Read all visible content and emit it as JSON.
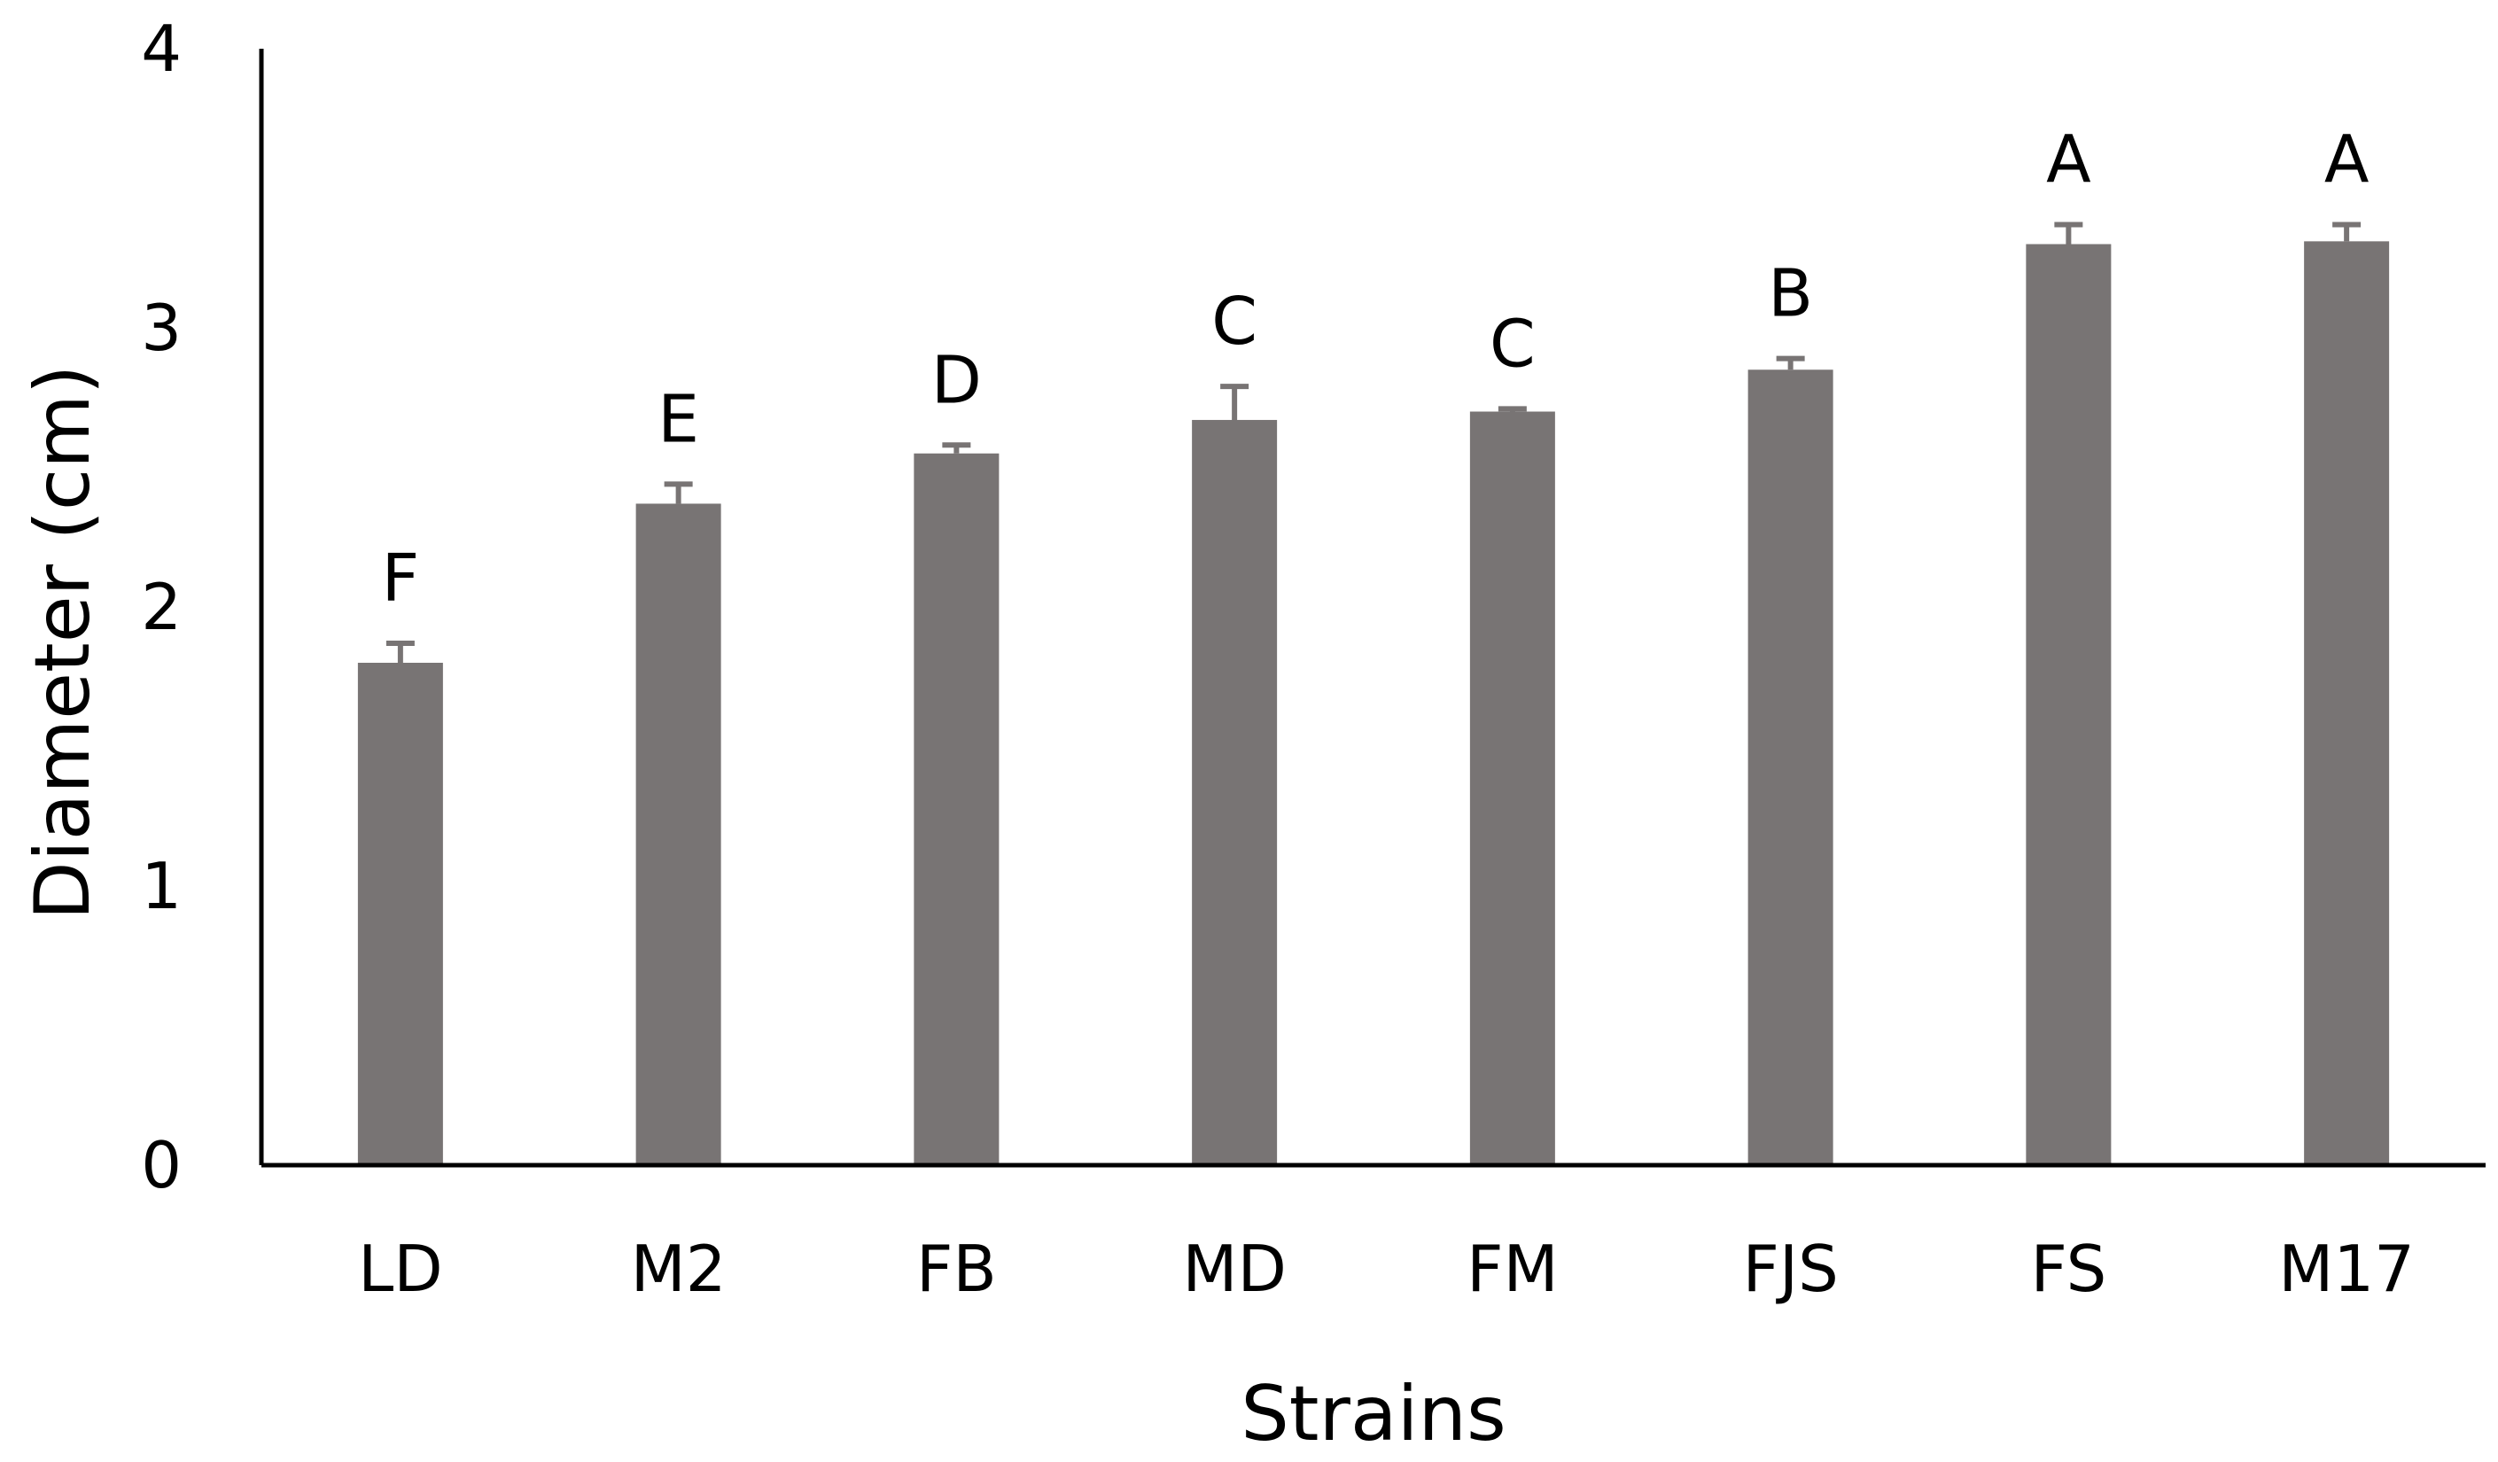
{
  "chart_data": {
    "type": "bar",
    "title": "",
    "xlabel": "Strains",
    "ylabel": "Diameter (cm)",
    "ylim": [
      0,
      4
    ],
    "yticks": [
      "0",
      "1",
      "2",
      "3",
      "4"
    ],
    "grid": false,
    "legend": "none",
    "categories": [
      "LD",
      "M2",
      "FB",
      "MD",
      "FM",
      "FJS",
      "FS",
      "M17"
    ],
    "series": [
      {
        "values": [
          1.8,
          2.37,
          2.55,
          2.67,
          2.7,
          2.85,
          3.3,
          3.31
        ],
        "errors": [
          0.07,
          0.07,
          0.03,
          0.12,
          0.01,
          0.04,
          0.07,
          0.06
        ],
        "significance": [
          "F",
          "E",
          "D",
          "C",
          "C",
          "B",
          "A",
          "A"
        ]
      }
    ],
    "colors": {
      "bar": "#787474",
      "axis": "#000000",
      "text": "#000000"
    }
  }
}
